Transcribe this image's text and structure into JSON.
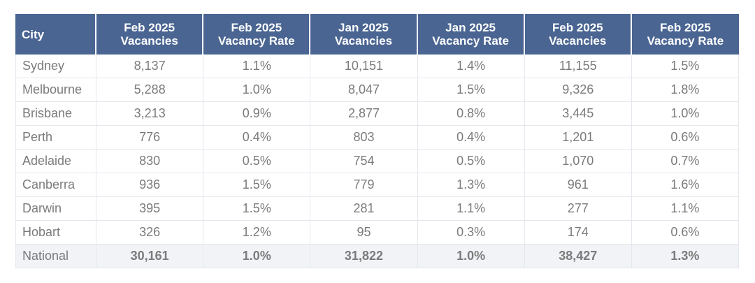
{
  "table": {
    "headers": [
      {
        "line1": "City",
        "line2": ""
      },
      {
        "line1": "Feb 2025",
        "line2": "Vacancies"
      },
      {
        "line1": "Feb 2025",
        "line2": "Vacancy Rate"
      },
      {
        "line1": "Jan 2025",
        "line2": "Vacancies"
      },
      {
        "line1": "Jan 2025",
        "line2": "Vacancy Rate"
      },
      {
        "line1": "Feb 2025",
        "line2": "Vacancies"
      },
      {
        "line1": "Feb 2025",
        "line2": "Vacancy Rate"
      }
    ],
    "rows": [
      [
        "Sydney",
        "8,137",
        "1.1%",
        "10,151",
        "1.4%",
        "11,155",
        "1.5%"
      ],
      [
        "Melbourne",
        "5,288",
        "1.0%",
        "8,047",
        "1.5%",
        "9,326",
        "1.8%"
      ],
      [
        "Brisbane",
        "3,213",
        "0.9%",
        "2,877",
        "0.8%",
        "3,445",
        "1.0%"
      ],
      [
        "Perth",
        "776",
        "0.4%",
        "803",
        "0.4%",
        "1,201",
        "0.6%"
      ],
      [
        "Adelaide",
        "830",
        "0.5%",
        "754",
        "0.5%",
        "1,070",
        "0.7%"
      ],
      [
        "Canberra",
        "936",
        "1.5%",
        "779",
        "1.3%",
        "961",
        "1.6%"
      ],
      [
        "Darwin",
        "395",
        "1.5%",
        "281",
        "1.1%",
        "277",
        "1.1%"
      ],
      [
        "Hobart",
        "326",
        "1.2%",
        "95",
        "0.3%",
        "174",
        "0.6%"
      ]
    ],
    "total": [
      "National",
      "30,161",
      "1.0%",
      "31,822",
      "1.0%",
      "38,427",
      "1.3%"
    ]
  },
  "colors": {
    "header_bg": "#4a6592",
    "header_text": "#ffffff",
    "body_text": "#7b7b7b",
    "total_row_bg": "#f1f3f7",
    "grid_line": "#e4e8ee"
  }
}
